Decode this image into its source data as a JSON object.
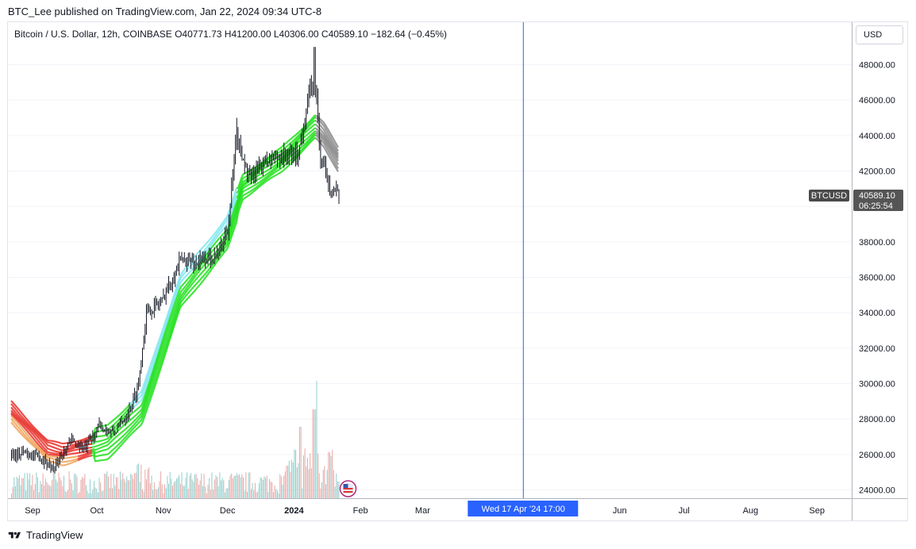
{
  "header": {
    "publish_text": "BTC_Lee published on TradingView.com, Jan 22, 2024 09:34 UTC-8",
    "symbol_line": "Bitcoin / U.S. Dollar, 12h, COINBASE  O40771.73  H41200.00  L40306.00  C40589.10  −182.64 (−0.45%)"
  },
  "currency": "USD",
  "price_label": {
    "symbol": "BTCUSD",
    "price": "40589.10",
    "countdown": "06:25:54"
  },
  "crosshair_label": "Wed 17 Apr '24   17:00",
  "brand": "TradingView",
  "colors": {
    "up_ribbon": "#22e11d",
    "fast_ribbon": "#7fe6ee",
    "down_ribbon": "#e8302a",
    "orange_ribbon": "#f0a35a",
    "grey_ribbon": "#8a8a8a",
    "candles": "#131722",
    "volume_up": "#8fd0cc",
    "volume_down": "#e8a7a5",
    "crosshair": "#2962ff"
  },
  "chart_data": {
    "type": "line",
    "title": "Bitcoin / U.S. Dollar, 12h, COINBASE",
    "xlabel": "",
    "ylabel": "",
    "ylim": [
      23700,
      49300
    ],
    "y_ticks": [
      "24000.00",
      "26000.00",
      "28000.00",
      "30000.00",
      "32000.00",
      "34000.00",
      "36000.00",
      "38000.00",
      "40000.00",
      "42000.00",
      "44000.00",
      "46000.00",
      "48000.00"
    ],
    "x_ticks": [
      {
        "label": "Sep",
        "date": "2023-09-01",
        "bold": false
      },
      {
        "label": "Oct",
        "date": "2023-10-01",
        "bold": false
      },
      {
        "label": "Nov",
        "date": "2023-11-01",
        "bold": false
      },
      {
        "label": "Dec",
        "date": "2023-12-01",
        "bold": false
      },
      {
        "label": "2024",
        "date": "2024-01-01",
        "bold": true
      },
      {
        "label": "Feb",
        "date": "2024-02-01",
        "bold": false
      },
      {
        "label": "Mar",
        "date": "2024-03-01",
        "bold": false
      },
      {
        "label": "Jun",
        "date": "2024-06-01",
        "bold": false
      },
      {
        "label": "Jul",
        "date": "2024-07-01",
        "bold": false
      },
      {
        "label": "Aug",
        "date": "2024-08-01",
        "bold": false
      },
      {
        "label": "Sep",
        "date": "2024-09-01",
        "bold": false
      }
    ],
    "crosshair_date": "2024-04-17",
    "last_price": 40589.1,
    "ohlc": {
      "open": 40771.73,
      "high": 41200.0,
      "low": 40306.0,
      "close": 40589.1,
      "change": -182.64,
      "change_pct": -0.45
    },
    "price_path": [
      {
        "date": "2023-08-22",
        "close": 26000
      },
      {
        "date": "2023-08-29",
        "close": 26100
      },
      {
        "date": "2023-09-05",
        "close": 25800
      },
      {
        "date": "2023-09-11",
        "close": 25200
      },
      {
        "date": "2023-09-18",
        "close": 26800
      },
      {
        "date": "2023-09-25",
        "close": 26300
      },
      {
        "date": "2023-10-02",
        "close": 27600
      },
      {
        "date": "2023-10-09",
        "close": 27200
      },
      {
        "date": "2023-10-16",
        "close": 28500
      },
      {
        "date": "2023-10-20",
        "close": 29800
      },
      {
        "date": "2023-10-24",
        "close": 34000
      },
      {
        "date": "2023-10-31",
        "close": 34600
      },
      {
        "date": "2023-11-09",
        "close": 37000
      },
      {
        "date": "2023-11-16",
        "close": 36800
      },
      {
        "date": "2023-11-26",
        "close": 37300
      },
      {
        "date": "2023-12-01",
        "close": 38800
      },
      {
        "date": "2023-12-05",
        "close": 44000
      },
      {
        "date": "2023-12-11",
        "close": 41500
      },
      {
        "date": "2023-12-18",
        "close": 42500
      },
      {
        "date": "2023-12-25",
        "close": 42800
      },
      {
        "date": "2024-01-03",
        "close": 43000
      },
      {
        "date": "2024-01-08",
        "close": 46500
      },
      {
        "date": "2024-01-11",
        "close": 46700
      },
      {
        "date": "2024-01-13",
        "close": 42800
      },
      {
        "date": "2024-01-18",
        "close": 41000
      },
      {
        "date": "2024-01-22",
        "close": 40589.1
      }
    ],
    "series": [
      {
        "name": "",
        "kind": "ribbon",
        "x": [
          "2023-08-22",
          "2023-09-08",
          "2023-09-15",
          "2023-10-06",
          "2023-10-22",
          "2023-11-09",
          "2023-12-01",
          "2023-12-08",
          "2023-12-26",
          "2024-01-11",
          "2024-01-15",
          "2024-01-22"
        ],
        "values": [
          28400,
          26200,
          26000,
          26700,
          28600,
          35200,
          38500,
          41100,
          42600,
          44500,
          44000,
          42600
        ]
      }
    ]
  }
}
